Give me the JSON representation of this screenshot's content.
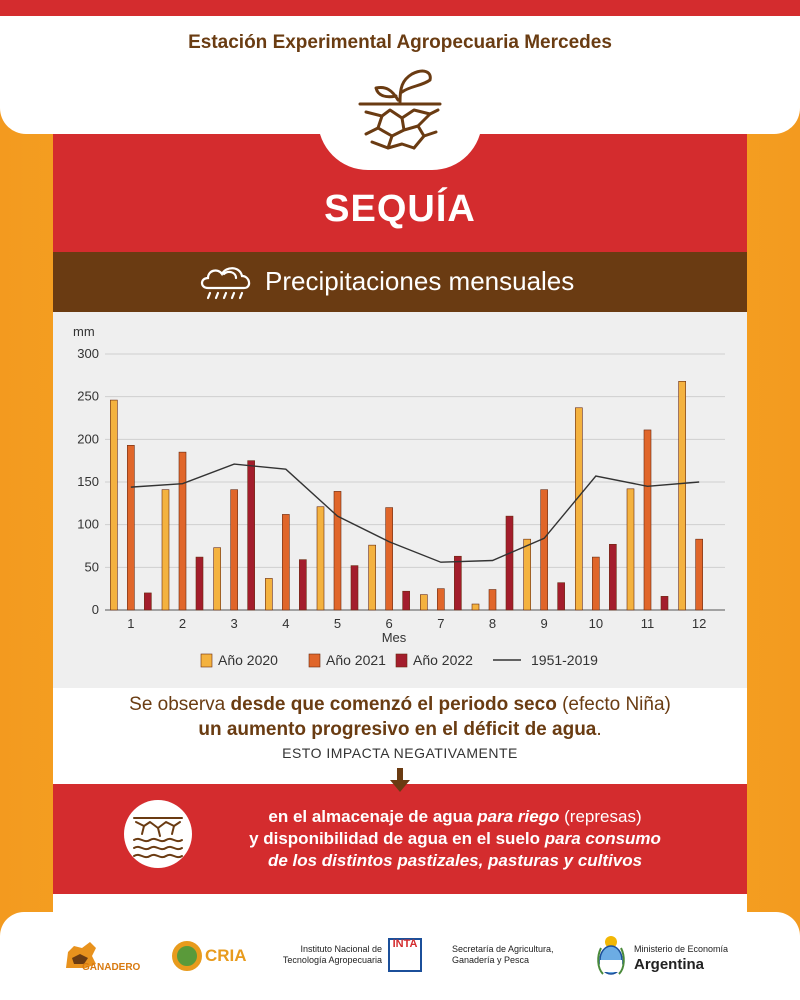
{
  "header": {
    "title": "Estación Experimental Agropecuaria Mercedes"
  },
  "hero": {
    "title": "SEQUÍA"
  },
  "section": {
    "title": "Precipitaciones mensuales"
  },
  "chart_data": {
    "type": "bar",
    "ylabel": "mm",
    "xlabel": "Mes",
    "ylim": [
      0,
      300
    ],
    "yticks": [
      0,
      50,
      100,
      150,
      200,
      250,
      300
    ],
    "grid": true,
    "legend_position": "bottom",
    "categories": [
      "1",
      "2",
      "3",
      "4",
      "5",
      "6",
      "7",
      "8",
      "9",
      "10",
      "11",
      "12"
    ],
    "series": [
      {
        "name": "Año 2020",
        "kind": "bar",
        "color": "#f4b23f",
        "values": [
          246,
          141,
          73,
          37,
          121,
          76,
          18,
          7,
          83,
          237,
          142,
          268
        ]
      },
      {
        "name": "Año 2021",
        "kind": "bar",
        "color": "#e0662a",
        "values": [
          193,
          185,
          141,
          112,
          139,
          120,
          25,
          24,
          141,
          62,
          211,
          83
        ]
      },
      {
        "name": "Año 2022",
        "kind": "bar",
        "color": "#a31d2c",
        "values": [
          20,
          62,
          175,
          59,
          52,
          22,
          63,
          110,
          32,
          77,
          16,
          0
        ]
      },
      {
        "name": "1951-2019",
        "kind": "line",
        "color": "#333333",
        "values": [
          144,
          148,
          171,
          165,
          110,
          80,
          56,
          58,
          84,
          157,
          145,
          150
        ]
      }
    ]
  },
  "description": {
    "line1_a": "Se observa ",
    "line1_b": "desde que comenzó el periodo seco",
    "line1_c": " (efecto Niña)",
    "line2_a": "un aumento progresivo en el déficit de agua",
    "line2_b": ".",
    "line3": "ESTO IMPACTA NEGATIVAMENTE"
  },
  "impact": {
    "l1_a": "en el almacenaje de agua ",
    "l1_b": "para riego",
    "l1_c": " (represas)",
    "l2_a": "y disponibilidad de agua en el suelo ",
    "l2_b": "para consumo",
    "l3": "de los distintos pastizales, pasturas y cultivos"
  },
  "footer": {
    "ganadero": "GANADERO",
    "cria": "CRIA",
    "inta_name_1": "Instituto Nacional de",
    "inta_name_2": "Tecnología Agropecuaria",
    "inta_logo": "INTA",
    "sag_1": "Secretaría de Agricultura,",
    "sag_2": "Ganadería y Pesca",
    "ministerio": "Ministerio de Economía",
    "argentina": "Argentina"
  },
  "colors": {
    "red": "#d42c2e",
    "brown": "#6a3b12",
    "orange": "#f4a21f"
  }
}
